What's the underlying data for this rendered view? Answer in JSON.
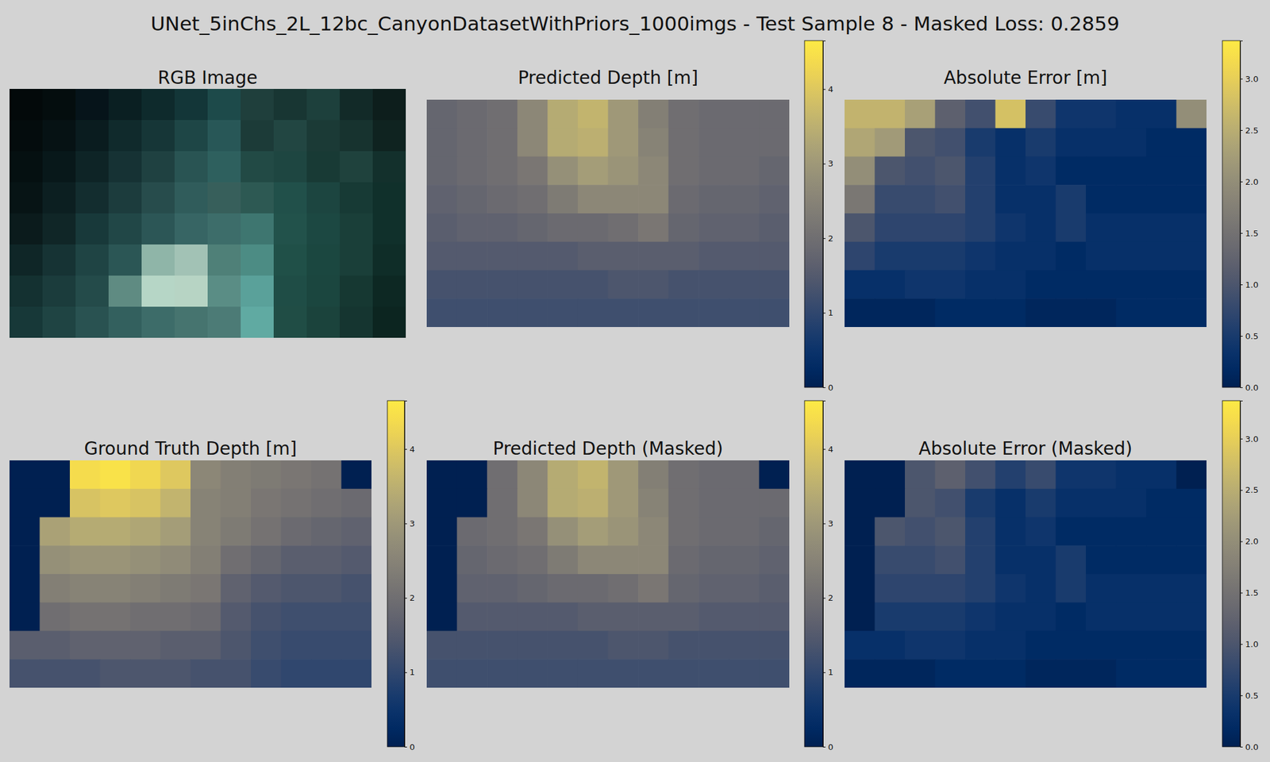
{
  "chart_data": {
    "title": "UNet_5inChs_2L_12bc_CanyonDatasetWithPriors_1000imgs - Test Sample 8 - Masked Loss: 0.2859",
    "panels": [
      {
        "type": "image",
        "title": "RGB Image",
        "colors": [
          [
            "#03090a",
            "#040d0e",
            "#06141a",
            "#0a1f22",
            "#0e2a2c",
            "#133638",
            "#1d4a4a",
            "#1f3f3c",
            "#183633",
            "#1d403c",
            "#122a28",
            "#0d1e1c"
          ],
          [
            "#040c0d",
            "#061214",
            "#0a1c1f",
            "#102a2c",
            "#163637",
            "#1e4646",
            "#285757",
            "#1c3b38",
            "#224642",
            "#1b3a36",
            "#17332f",
            "#0f2320"
          ],
          [
            "#051011",
            "#08181a",
            "#0e2426",
            "#163234",
            "#1f4141",
            "#295453",
            "#2e605e",
            "#224a45",
            "#1e4641",
            "#183a35",
            "#1f423d",
            "#13302c"
          ],
          [
            "#071415",
            "#0c1f21",
            "#132d2f",
            "#1c3c3d",
            "#274c4c",
            "#305c5b",
            "#375f5b",
            "#2d5953",
            "#21504a",
            "#1c4540",
            "#173a35",
            "#10302b"
          ],
          [
            "#0b1b1c",
            "#102627",
            "#18393a",
            "#214747",
            "#2c5656",
            "#376564",
            "#3d6d6a",
            "#3e7670",
            "#22524b",
            "#1c4842",
            "#1a3f39",
            "#10302b"
          ],
          [
            "#0f2627",
            "#163334",
            "#1f4444",
            "#2b5655",
            "#8fb5a8",
            "#a2c2b5",
            "#4f8078",
            "#4c8c84",
            "#205048",
            "#1b4740",
            "#1a3f39",
            "#0f2d28"
          ],
          [
            "#143131",
            "#1b3c3c",
            "#244b4a",
            "#5f8b82",
            "#b6d6c6",
            "#b7d4c4",
            "#5a8d85",
            "#5aa19a",
            "#1f4d46",
            "#1b463f",
            "#163832",
            "#0d2823"
          ],
          [
            "#173838",
            "#1f4443",
            "#295251",
            "#33605e",
            "#3d6c69",
            "#46746f",
            "#4c7b76",
            "#60aaa2",
            "#204d45",
            "#1b433c",
            "#153530",
            "#0c2520"
          ]
        ]
      },
      {
        "type": "heatmap",
        "title": "Predicted Depth [m]",
        "values": [
          [
            1.8,
            1.9,
            2.0,
            2.6,
            3.4,
            3.6,
            3.0,
            2.4,
            2.0,
            1.9,
            1.9,
            1.9
          ],
          [
            1.8,
            1.9,
            2.0,
            2.6,
            3.4,
            3.5,
            3.0,
            2.5,
            2.0,
            1.9,
            1.9,
            1.9
          ],
          [
            1.8,
            1.9,
            2.0,
            2.2,
            2.8,
            3.1,
            2.9,
            2.6,
            2.0,
            1.9,
            1.9,
            1.8
          ],
          [
            1.7,
            1.8,
            1.9,
            2.0,
            2.3,
            2.6,
            2.6,
            2.6,
            1.9,
            1.8,
            1.8,
            1.7
          ],
          [
            1.6,
            1.7,
            1.7,
            1.8,
            1.9,
            1.9,
            2.0,
            2.2,
            1.8,
            1.7,
            1.7,
            1.6
          ],
          [
            1.5,
            1.5,
            1.5,
            1.5,
            1.5,
            1.6,
            1.6,
            1.6,
            1.6,
            1.5,
            1.5,
            1.5
          ],
          [
            1.3,
            1.3,
            1.3,
            1.3,
            1.3,
            1.3,
            1.4,
            1.4,
            1.3,
            1.3,
            1.3,
            1.3
          ],
          [
            1.2,
            1.2,
            1.2,
            1.2,
            1.2,
            1.2,
            1.2,
            1.2,
            1.2,
            1.2,
            1.2,
            1.2
          ]
        ],
        "colorbar": {
          "lim": [
            0,
            4.65
          ],
          "ticks": [
            0,
            1,
            2,
            3,
            4
          ]
        }
      },
      {
        "type": "heatmap",
        "title": "Absolute Error [m]",
        "values": [
          [
            2.6,
            2.6,
            2.3,
            1.2,
            0.9,
            2.8,
            0.8,
            0.4,
            0.4,
            0.3,
            0.3,
            2.0
          ],
          [
            2.4,
            2.2,
            1.0,
            0.9,
            0.5,
            0.3,
            0.5,
            0.3,
            0.3,
            0.3,
            0.2,
            0.2
          ],
          [
            2.0,
            1.0,
            0.9,
            1.0,
            0.6,
            0.3,
            0.4,
            0.2,
            0.2,
            0.2,
            0.2,
            0.2
          ],
          [
            1.6,
            0.8,
            0.8,
            0.9,
            0.6,
            0.3,
            0.3,
            0.5,
            0.2,
            0.2,
            0.2,
            0.2
          ],
          [
            1.0,
            0.7,
            0.7,
            0.7,
            0.6,
            0.4,
            0.3,
            0.5,
            0.3,
            0.3,
            0.3,
            0.3
          ],
          [
            0.7,
            0.5,
            0.5,
            0.5,
            0.4,
            0.3,
            0.3,
            0.2,
            0.3,
            0.3,
            0.3,
            0.3
          ],
          [
            0.3,
            0.3,
            0.4,
            0.4,
            0.3,
            0.3,
            0.2,
            0.2,
            0.2,
            0.2,
            0.2,
            0.2
          ],
          [
            0.1,
            0.1,
            0.1,
            0.2,
            0.2,
            0.2,
            0.1,
            0.1,
            0.1,
            0.2,
            0.2,
            0.2
          ]
        ],
        "colorbar": {
          "lim": [
            0,
            3.37
          ],
          "ticks": [
            {
              "value": 0,
              "label": "0.0"
            },
            {
              "value": 0.5,
              "label": "0.5"
            },
            {
              "value": 1,
              "label": "1.0"
            },
            {
              "value": 1.5,
              "label": "1.5"
            },
            {
              "value": 2,
              "label": "2.0"
            },
            {
              "value": 2.5,
              "label": "2.5"
            },
            {
              "value": 3,
              "label": "3.0"
            }
          ]
        }
      },
      {
        "type": "heatmap",
        "title": "Ground Truth Depth [m]",
        "values": [
          [
            0,
            0,
            4.4,
            4.5,
            4.3,
            4.0,
            2.6,
            2.4,
            2.3,
            2.2,
            2.1,
            0
          ],
          [
            0,
            0,
            3.9,
            4.0,
            3.9,
            3.6,
            2.5,
            2.4,
            2.2,
            2.1,
            2.0,
            1.9
          ],
          [
            0,
            3.2,
            3.4,
            3.4,
            3.3,
            3.1,
            2.5,
            2.3,
            2.1,
            1.9,
            1.8,
            1.7
          ],
          [
            0,
            2.8,
            2.9,
            2.9,
            2.8,
            2.7,
            2.4,
            2.0,
            1.8,
            1.6,
            1.6,
            1.5
          ],
          [
            0,
            2.4,
            2.5,
            2.5,
            2.4,
            2.3,
            2.2,
            1.7,
            1.5,
            1.4,
            1.4,
            1.3
          ],
          [
            0,
            2.0,
            2.1,
            2.1,
            2.0,
            2.0,
            1.9,
            1.5,
            1.3,
            1.2,
            1.2,
            1.2
          ],
          [
            1.6,
            1.6,
            1.7,
            1.7,
            1.7,
            1.6,
            1.6,
            1.4,
            1.2,
            1.1,
            1.1,
            1.1
          ],
          [
            1.3,
            1.3,
            1.3,
            1.4,
            1.4,
            1.4,
            1.3,
            1.3,
            1.1,
            1.0,
            1.0,
            1.0
          ]
        ],
        "colorbar": {
          "lim": [
            0,
            4.65
          ],
          "ticks": [
            0,
            1,
            2,
            3,
            4
          ]
        }
      },
      {
        "type": "heatmap",
        "title": "Predicted Depth (Masked)",
        "values": [
          [
            0,
            0,
            2.0,
            2.6,
            3.4,
            3.6,
            3.0,
            2.4,
            2.0,
            1.9,
            1.9,
            0
          ],
          [
            0,
            0,
            2.0,
            2.6,
            3.4,
            3.5,
            3.0,
            2.5,
            2.0,
            1.9,
            1.9,
            1.9
          ],
          [
            0,
            1.9,
            2.0,
            2.2,
            2.8,
            3.1,
            2.9,
            2.6,
            2.0,
            1.9,
            1.9,
            1.8
          ],
          [
            0,
            1.8,
            1.9,
            2.0,
            2.3,
            2.6,
            2.6,
            2.6,
            1.9,
            1.8,
            1.8,
            1.7
          ],
          [
            0,
            1.7,
            1.7,
            1.8,
            1.9,
            1.9,
            2.0,
            2.2,
            1.8,
            1.7,
            1.7,
            1.6
          ],
          [
            0,
            1.5,
            1.5,
            1.5,
            1.5,
            1.6,
            1.6,
            1.6,
            1.6,
            1.5,
            1.5,
            1.5
          ],
          [
            1.3,
            1.3,
            1.3,
            1.3,
            1.3,
            1.3,
            1.4,
            1.4,
            1.3,
            1.3,
            1.3,
            1.3
          ],
          [
            1.2,
            1.2,
            1.2,
            1.2,
            1.2,
            1.2,
            1.2,
            1.2,
            1.2,
            1.2,
            1.2,
            1.2
          ]
        ],
        "colorbar": {
          "lim": [
            0,
            4.65
          ],
          "ticks": [
            0,
            1,
            2,
            3,
            4
          ]
        }
      },
      {
        "type": "heatmap",
        "title": "Absolute Error (Masked)",
        "values": [
          [
            0,
            0,
            1.0,
            1.2,
            0.9,
            0.6,
            0.8,
            0.4,
            0.4,
            0.3,
            0.3,
            0
          ],
          [
            0,
            0,
            1.0,
            0.9,
            0.5,
            0.3,
            0.5,
            0.3,
            0.3,
            0.3,
            0.2,
            0.2
          ],
          [
            0,
            1.0,
            0.9,
            1.0,
            0.6,
            0.3,
            0.4,
            0.2,
            0.2,
            0.2,
            0.2,
            0.2
          ],
          [
            0,
            0.8,
            0.8,
            0.9,
            0.6,
            0.3,
            0.3,
            0.5,
            0.2,
            0.2,
            0.2,
            0.2
          ],
          [
            0,
            0.7,
            0.7,
            0.7,
            0.6,
            0.4,
            0.3,
            0.5,
            0.3,
            0.3,
            0.3,
            0.3
          ],
          [
            0,
            0.5,
            0.5,
            0.5,
            0.4,
            0.3,
            0.3,
            0.2,
            0.3,
            0.3,
            0.3,
            0.3
          ],
          [
            0.3,
            0.3,
            0.4,
            0.4,
            0.3,
            0.3,
            0.2,
            0.2,
            0.2,
            0.2,
            0.2,
            0.2
          ],
          [
            0.1,
            0.1,
            0.1,
            0.2,
            0.2,
            0.2,
            0.1,
            0.1,
            0.1,
            0.2,
            0.2,
            0.2
          ]
        ],
        "colorbar": {
          "lim": [
            0,
            3.37
          ],
          "ticks": [
            {
              "value": 0,
              "label": "0.0"
            },
            {
              "value": 0.5,
              "label": "0.5"
            },
            {
              "value": 1,
              "label": "1.0"
            },
            {
              "value": 1.5,
              "label": "1.5"
            },
            {
              "value": 2,
              "label": "2.0"
            },
            {
              "value": 2.5,
              "label": "2.5"
            },
            {
              "value": 3,
              "label": "3.0"
            }
          ]
        }
      }
    ]
  }
}
